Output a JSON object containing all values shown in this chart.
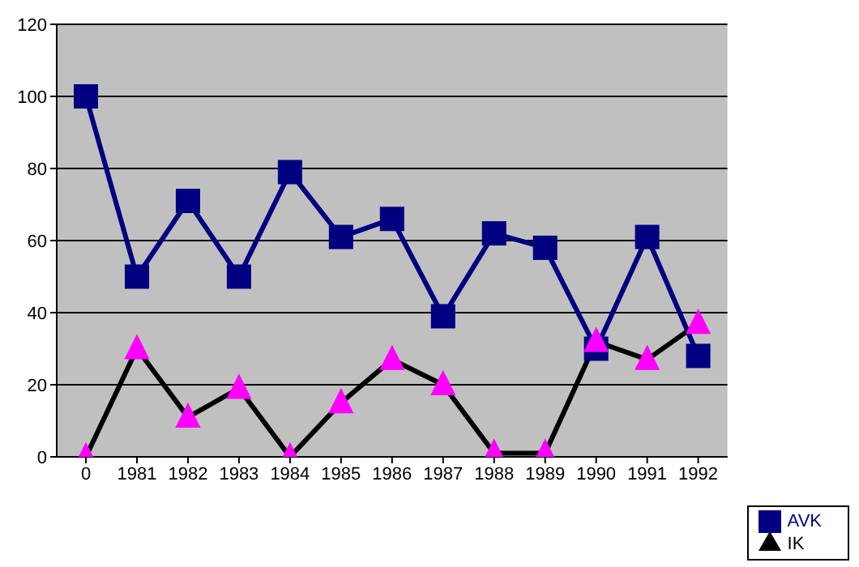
{
  "chart_data": {
    "type": "line",
    "categories": [
      "0",
      "1981",
      "1982",
      "1983",
      "1984",
      "1985",
      "1986",
      "1987",
      "1988",
      "1989",
      "1990",
      "1991",
      "1992"
    ],
    "series": [
      {
        "name": "AVK",
        "color": "#000080",
        "marker": "square",
        "values": [
          100,
          50,
          71,
          50,
          79,
          61,
          66,
          39,
          62,
          58,
          30,
          61,
          28
        ]
      },
      {
        "name": "IK",
        "color": "#000000",
        "marker": "triangle",
        "colors": [
          "#ff00ff",
          "#ff00ff",
          "#ff00ff",
          "#ff00ff",
          "#ff00ff",
          "#ff00ff",
          "#ff00ff",
          "#ff00ff",
          "#ff00ff",
          "#ff00ff",
          "#ff00ff",
          "#ff00ff",
          "#ff00ff"
        ],
        "values": [
          0,
          30,
          11,
          19,
          0,
          15,
          27,
          20,
          1,
          1,
          32,
          27,
          37
        ]
      }
    ],
    "ylim": [
      0,
      120
    ],
    "yticks": [
      0,
      20,
      40,
      60,
      80,
      100,
      120
    ],
    "grid": "y",
    "legend": "bottom right"
  }
}
